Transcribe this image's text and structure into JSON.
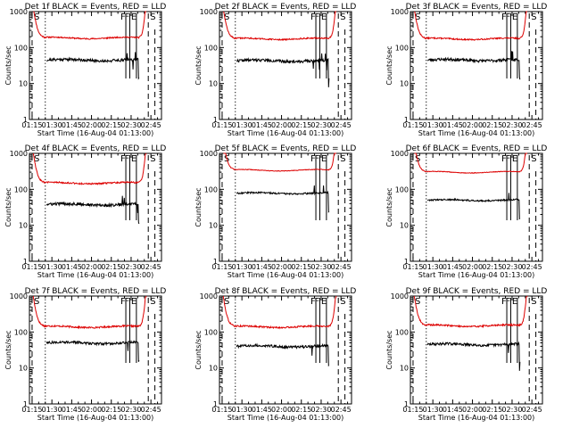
{
  "figure": {
    "legend_note": "BLACK = Events, RED = LLD",
    "colors": {
      "events": "#000000",
      "lld": "#dd0000",
      "axes": "#000000",
      "background": "#ffffff"
    }
  },
  "chart_data": [
    {
      "type": "line",
      "title": "Det 1f BLACK = Events, RED = LLD",
      "xlabel": "Start Time (16-Aug-04 01:13:00)",
      "ylabel": "Counts/sec",
      "x_ticks": [
        "01:15",
        "01:30",
        "01:45",
        "02:00",
        "02:15",
        "02:30",
        "02:45"
      ],
      "y_ticks": [
        "1",
        "10",
        "100",
        "1000"
      ],
      "yscale": "log",
      "ylim": [
        1,
        1000
      ],
      "xlim_minutes": [
        0,
        100
      ],
      "grid": false,
      "markers": [
        {
          "label": "S",
          "x": 2
        },
        {
          "label": "F",
          "x": 73
        },
        {
          "label": "F",
          "x": 76
        },
        {
          "label": "E",
          "x": 81
        },
        {
          "label": "S",
          "x": 90
        }
      ],
      "series": [
        {
          "name": "RED = LLD",
          "x_start": 3,
          "x_end": 88,
          "level": 185,
          "wave": 0.05,
          "noise": 0.04,
          "seed": 11
        },
        {
          "name": "BLACK = Events",
          "x_start": 13,
          "x_end": 83,
          "level": 45,
          "wave": 0.05,
          "noise": 0.09,
          "seed": 21
        }
      ]
    },
    {
      "type": "line",
      "title": "Det 2f BLACK = Events, RED = LLD",
      "xlabel": "Start Time (16-Aug-04 01:13:00)",
      "ylabel": "Counts/sec",
      "x_ticks": [
        "01:15",
        "01:30",
        "01:45",
        "02:00",
        "02:15",
        "02:30",
        "02:45"
      ],
      "y_ticks": [
        "1",
        "10",
        "100",
        "1000"
      ],
      "yscale": "log",
      "ylim": [
        1,
        1000
      ],
      "xlim_minutes": [
        0,
        100
      ],
      "grid": false,
      "markers": [
        {
          "label": "S",
          "x": 2
        },
        {
          "label": "F",
          "x": 73
        },
        {
          "label": "F",
          "x": 76
        },
        {
          "label": "E",
          "x": 81
        },
        {
          "label": "S",
          "x": 90
        }
      ],
      "series": [
        {
          "name": "RED = LLD",
          "x_start": 3,
          "x_end": 88,
          "level": 175,
          "wave": 0.05,
          "noise": 0.04,
          "seed": 12
        },
        {
          "name": "BLACK = Events",
          "x_start": 13,
          "x_end": 83,
          "level": 43,
          "wave": 0.05,
          "noise": 0.09,
          "seed": 22
        }
      ]
    },
    {
      "type": "line",
      "title": "Det 3f BLACK = Events, RED = LLD",
      "xlabel": "Start Time (16-Aug-04 01:13:00)",
      "ylabel": "Counts/sec",
      "x_ticks": [
        "01:15",
        "01:30",
        "01:45",
        "02:00",
        "02:15",
        "02:30",
        "02:45"
      ],
      "y_ticks": [
        "1",
        "10",
        "100",
        "1000"
      ],
      "yscale": "log",
      "ylim": [
        1,
        1000
      ],
      "xlim_minutes": [
        0,
        100
      ],
      "grid": false,
      "markers": [
        {
          "label": "S",
          "x": 2
        },
        {
          "label": "F",
          "x": 73
        },
        {
          "label": "F",
          "x": 76
        },
        {
          "label": "E",
          "x": 81
        },
        {
          "label": "S",
          "x": 90
        }
      ],
      "series": [
        {
          "name": "RED = LLD",
          "x_start": 3,
          "x_end": 88,
          "level": 175,
          "wave": 0.05,
          "noise": 0.04,
          "seed": 13
        },
        {
          "name": "BLACK = Events",
          "x_start": 13,
          "x_end": 83,
          "level": 45,
          "wave": 0.05,
          "noise": 0.09,
          "seed": 23
        }
      ]
    },
    {
      "type": "line",
      "title": "Det 4f BLACK = Events, RED = LLD",
      "xlabel": "Start Time (16-Aug-04 01:13:00)",
      "ylabel": "Counts/sec",
      "x_ticks": [
        "01:15",
        "01:30",
        "01:45",
        "02:00",
        "02:15",
        "02:30",
        "02:45"
      ],
      "y_ticks": [
        "1",
        "10",
        "100",
        "1000"
      ],
      "yscale": "log",
      "ylim": [
        1,
        1000
      ],
      "xlim_minutes": [
        0,
        100
      ],
      "grid": false,
      "markers": [
        {
          "label": "S",
          "x": 2
        },
        {
          "label": "F",
          "x": 73
        },
        {
          "label": "F",
          "x": 76
        },
        {
          "label": "E",
          "x": 81
        },
        {
          "label": "S",
          "x": 90
        }
      ],
      "series": [
        {
          "name": "RED = LLD",
          "x_start": 3,
          "x_end": 88,
          "level": 150,
          "wave": 0.05,
          "noise": 0.05,
          "seed": 14
        },
        {
          "name": "BLACK = Events",
          "x_start": 13,
          "x_end": 83,
          "level": 38,
          "wave": 0.05,
          "noise": 0.09,
          "seed": 24
        }
      ]
    },
    {
      "type": "line",
      "title": "Det 5f BLACK = Events, RED = LLD",
      "xlabel": "Start Time (16-Aug-04 01:13:00)",
      "ylabel": "Counts/sec",
      "x_ticks": [
        "01:15",
        "01:30",
        "01:45",
        "02:00",
        "02:15",
        "02:30",
        "02:45"
      ],
      "y_ticks": [
        "1",
        "10",
        "100",
        "1000"
      ],
      "yscale": "log",
      "ylim": [
        1,
        1000
      ],
      "xlim_minutes": [
        0,
        100
      ],
      "grid": false,
      "markers": [
        {
          "label": "S",
          "x": 2
        },
        {
          "label": "F",
          "x": 73
        },
        {
          "label": "F",
          "x": 76
        },
        {
          "label": "E",
          "x": 81
        },
        {
          "label": "S",
          "x": 90
        }
      ],
      "series": [
        {
          "name": "RED = LLD",
          "x_start": 3,
          "x_end": 88,
          "level": 340,
          "wave": 0.05,
          "noise": 0.02,
          "seed": 15
        },
        {
          "name": "BLACK = Events",
          "x_start": 13,
          "x_end": 83,
          "level": 78,
          "wave": 0.04,
          "noise": 0.05,
          "seed": 25
        }
      ]
    },
    {
      "type": "line",
      "title": "Det 6f BLACK = Events, RED = LLD",
      "xlabel": "Start Time (16-Aug-04 01:13:00)",
      "ylabel": "Counts/sec",
      "x_ticks": [
        "01:15",
        "01:30",
        "01:45",
        "02:00",
        "02:15",
        "02:30",
        "02:45"
      ],
      "y_ticks": [
        "1",
        "10",
        "100",
        "1000"
      ],
      "yscale": "log",
      "ylim": [
        1,
        1000
      ],
      "xlim_minutes": [
        0,
        100
      ],
      "grid": false,
      "markers": [
        {
          "label": "S",
          "x": 2
        },
        {
          "label": "F",
          "x": 73
        },
        {
          "label": "F",
          "x": 76
        },
        {
          "label": "E",
          "x": 81
        },
        {
          "label": "S",
          "x": 90
        }
      ],
      "series": [
        {
          "name": "RED = LLD",
          "x_start": 3,
          "x_end": 88,
          "level": 300,
          "wave": 0.05,
          "noise": 0.02,
          "seed": 16
        },
        {
          "name": "BLACK = Events",
          "x_start": 13,
          "x_end": 83,
          "level": 50,
          "wave": 0.04,
          "noise": 0.05,
          "seed": 26
        }
      ]
    },
    {
      "type": "line",
      "title": "Det 7f BLACK = Events, RED = LLD",
      "xlabel": "Start Time (16-Aug-04 01:13:00)",
      "ylabel": "Counts/sec",
      "x_ticks": [
        "01:15",
        "01:30",
        "01:45",
        "02:00",
        "02:15",
        "02:30",
        "02:45"
      ],
      "y_ticks": [
        "1",
        "10",
        "100",
        "1000"
      ],
      "yscale": "log",
      "ylim": [
        1,
        1000
      ],
      "xlim_minutes": [
        0,
        100
      ],
      "grid": false,
      "markers": [
        {
          "label": "S",
          "x": 2
        },
        {
          "label": "F",
          "x": 73
        },
        {
          "label": "F",
          "x": 76
        },
        {
          "label": "E",
          "x": 81
        },
        {
          "label": "S",
          "x": 90
        }
      ],
      "series": [
        {
          "name": "RED = LLD",
          "x_start": 3,
          "x_end": 88,
          "level": 140,
          "wave": 0.05,
          "noise": 0.05,
          "seed": 17
        },
        {
          "name": "BLACK = Events",
          "x_start": 13,
          "x_end": 83,
          "level": 50,
          "wave": 0.05,
          "noise": 0.08,
          "seed": 27
        }
      ]
    },
    {
      "type": "line",
      "title": "Det 8f BLACK = Events, RED = LLD",
      "xlabel": "Start Time (16-Aug-04 01:13:00)",
      "ylabel": "Counts/sec",
      "x_ticks": [
        "01:15",
        "01:30",
        "01:45",
        "02:00",
        "02:15",
        "02:30",
        "02:45"
      ],
      "y_ticks": [
        "1",
        "10",
        "100",
        "1000"
      ],
      "yscale": "log",
      "ylim": [
        1,
        1000
      ],
      "xlim_minutes": [
        0,
        100
      ],
      "grid": false,
      "markers": [
        {
          "label": "S",
          "x": 2
        },
        {
          "label": "F",
          "x": 73
        },
        {
          "label": "F",
          "x": 76
        },
        {
          "label": "E",
          "x": 81
        },
        {
          "label": "S",
          "x": 90
        }
      ],
      "series": [
        {
          "name": "RED = LLD",
          "x_start": 3,
          "x_end": 88,
          "level": 140,
          "wave": 0.05,
          "noise": 0.05,
          "seed": 18
        },
        {
          "name": "BLACK = Events",
          "x_start": 13,
          "x_end": 83,
          "level": 40,
          "wave": 0.05,
          "noise": 0.08,
          "seed": 28
        }
      ]
    },
    {
      "type": "line",
      "title": "Det 9f BLACK = Events, RED = LLD",
      "xlabel": "Start Time (16-Aug-04 01:13:00)",
      "ylabel": "Counts/sec",
      "x_ticks": [
        "01:15",
        "01:30",
        "01:45",
        "02:00",
        "02:15",
        "02:30",
        "02:45"
      ],
      "y_ticks": [
        "1",
        "10",
        "100",
        "1000"
      ],
      "yscale": "log",
      "ylim": [
        1,
        1000
      ],
      "xlim_minutes": [
        0,
        100
      ],
      "grid": false,
      "markers": [
        {
          "label": "S",
          "x": 2
        },
        {
          "label": "F",
          "x": 73
        },
        {
          "label": "F",
          "x": 76
        },
        {
          "label": "E",
          "x": 81
        },
        {
          "label": "S",
          "x": 90
        }
      ],
      "series": [
        {
          "name": "RED = LLD",
          "x_start": 3,
          "x_end": 88,
          "level": 150,
          "wave": 0.05,
          "noise": 0.05,
          "seed": 19
        },
        {
          "name": "BLACK = Events",
          "x_start": 13,
          "x_end": 83,
          "level": 45,
          "wave": 0.05,
          "noise": 0.08,
          "seed": 29
        }
      ]
    }
  ]
}
